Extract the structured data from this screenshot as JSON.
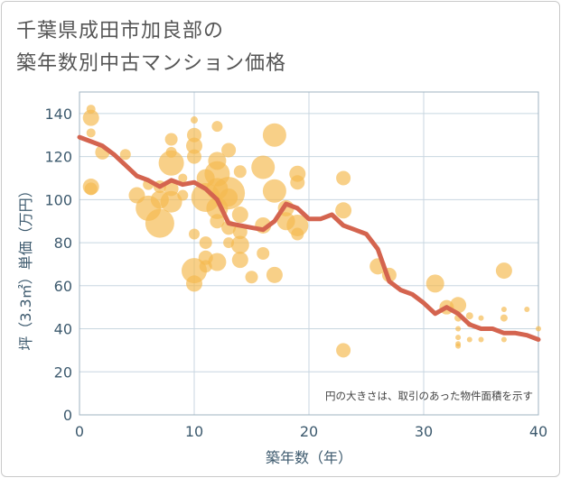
{
  "title_lines": [
    "千葉県成田市加良部の",
    "築年数別中古マンション価格"
  ],
  "chart_data": {
    "type": "scatter",
    "title": "千葉県成田市加良部の築年数別中古マンション価格",
    "xlabel": "築年数（年）",
    "ylabel": "坪（3.3㎡）単価（万円）",
    "xlim": [
      0,
      40
    ],
    "ylim": [
      0,
      150
    ],
    "x_ticks": [
      0,
      10,
      20,
      30,
      40
    ],
    "y_ticks": [
      0,
      20,
      40,
      60,
      80,
      100,
      120,
      140
    ],
    "grid": true,
    "note": "円の大きさは、取引のあった物件面積を示す",
    "colors": {
      "bubble": "#f5b94f",
      "line": "#d4644f",
      "grid": "#c8d6e0"
    },
    "bubbles": [
      {
        "x": 1,
        "y": 142,
        "s": 5
      },
      {
        "x": 1,
        "y": 138,
        "s": 9
      },
      {
        "x": 1,
        "y": 131,
        "s": 5
      },
      {
        "x": 1,
        "y": 106,
        "s": 9
      },
      {
        "x": 1,
        "y": 105,
        "s": 7
      },
      {
        "x": 2,
        "y": 122,
        "s": 8
      },
      {
        "x": 4,
        "y": 121,
        "s": 6
      },
      {
        "x": 5,
        "y": 102,
        "s": 9
      },
      {
        "x": 6,
        "y": 107,
        "s": 6
      },
      {
        "x": 6,
        "y": 96,
        "s": 14
      },
      {
        "x": 7,
        "y": 89,
        "s": 16
      },
      {
        "x": 7,
        "y": 100,
        "s": 10
      },
      {
        "x": 7,
        "y": 106,
        "s": 7
      },
      {
        "x": 8,
        "y": 128,
        "s": 7
      },
      {
        "x": 8,
        "y": 122,
        "s": 6
      },
      {
        "x": 8,
        "y": 117,
        "s": 14
      },
      {
        "x": 8,
        "y": 99,
        "s": 12
      },
      {
        "x": 8,
        "y": 105,
        "s": 8
      },
      {
        "x": 9,
        "y": 102,
        "s": 6
      },
      {
        "x": 9,
        "y": 110,
        "s": 5
      },
      {
        "x": 10,
        "y": 137,
        "s": 4
      },
      {
        "x": 10,
        "y": 130,
        "s": 8
      },
      {
        "x": 10,
        "y": 125,
        "s": 9
      },
      {
        "x": 10,
        "y": 120,
        "s": 8
      },
      {
        "x": 10,
        "y": 84,
        "s": 6
      },
      {
        "x": 10,
        "y": 67,
        "s": 14
      },
      {
        "x": 10,
        "y": 61,
        "s": 9
      },
      {
        "x": 11,
        "y": 101,
        "s": 16
      },
      {
        "x": 11,
        "y": 110,
        "s": 10
      },
      {
        "x": 11,
        "y": 80,
        "s": 7
      },
      {
        "x": 11,
        "y": 73,
        "s": 8
      },
      {
        "x": 11,
        "y": 69,
        "s": 7
      },
      {
        "x": 12,
        "y": 134,
        "s": 6
      },
      {
        "x": 12,
        "y": 118,
        "s": 10
      },
      {
        "x": 12,
        "y": 112,
        "s": 14
      },
      {
        "x": 12,
        "y": 105,
        "s": 12
      },
      {
        "x": 12,
        "y": 96,
        "s": 12
      },
      {
        "x": 12,
        "y": 90,
        "s": 8
      },
      {
        "x": 12,
        "y": 71,
        "s": 10
      },
      {
        "x": 13,
        "y": 123,
        "s": 8
      },
      {
        "x": 13,
        "y": 103,
        "s": 18
      },
      {
        "x": 13,
        "y": 101,
        "s": 10
      },
      {
        "x": 13,
        "y": 87,
        "s": 8
      },
      {
        "x": 13,
        "y": 80,
        "s": 6
      },
      {
        "x": 14,
        "y": 113,
        "s": 7
      },
      {
        "x": 14,
        "y": 93,
        "s": 9
      },
      {
        "x": 14,
        "y": 85,
        "s": 8
      },
      {
        "x": 14,
        "y": 79,
        "s": 10
      },
      {
        "x": 14,
        "y": 72,
        "s": 9
      },
      {
        "x": 15,
        "y": 64,
        "s": 7
      },
      {
        "x": 16,
        "y": 115,
        "s": 13
      },
      {
        "x": 16,
        "y": 88,
        "s": 9
      },
      {
        "x": 16,
        "y": 75,
        "s": 7
      },
      {
        "x": 17,
        "y": 130,
        "s": 13
      },
      {
        "x": 17,
        "y": 104,
        "s": 13
      },
      {
        "x": 17,
        "y": 65,
        "s": 9
      },
      {
        "x": 18,
        "y": 96,
        "s": 9
      },
      {
        "x": 18,
        "y": 90,
        "s": 10
      },
      {
        "x": 19,
        "y": 112,
        "s": 9
      },
      {
        "x": 19,
        "y": 108,
        "s": 8
      },
      {
        "x": 19,
        "y": 88,
        "s": 12
      },
      {
        "x": 19,
        "y": 84,
        "s": 7
      },
      {
        "x": 23,
        "y": 110,
        "s": 8
      },
      {
        "x": 23,
        "y": 95,
        "s": 9
      },
      {
        "x": 23,
        "y": 30,
        "s": 8
      },
      {
        "x": 26,
        "y": 69,
        "s": 9
      },
      {
        "x": 27,
        "y": 65,
        "s": 8
      },
      {
        "x": 31,
        "y": 61,
        "s": 10
      },
      {
        "x": 32,
        "y": 50,
        "s": 8
      },
      {
        "x": 33,
        "y": 51,
        "s": 9
      },
      {
        "x": 33,
        "y": 45,
        "s": 4
      },
      {
        "x": 33,
        "y": 40,
        "s": 3
      },
      {
        "x": 33,
        "y": 36,
        "s": 3
      },
      {
        "x": 33,
        "y": 33,
        "s": 3
      },
      {
        "x": 33,
        "y": 32,
        "s": 3
      },
      {
        "x": 34,
        "y": 46,
        "s": 4
      },
      {
        "x": 34,
        "y": 42,
        "s": 3
      },
      {
        "x": 34,
        "y": 35,
        "s": 3
      },
      {
        "x": 35,
        "y": 45,
        "s": 3
      },
      {
        "x": 35,
        "y": 35,
        "s": 3
      },
      {
        "x": 37,
        "y": 67,
        "s": 9
      },
      {
        "x": 37,
        "y": 49,
        "s": 3
      },
      {
        "x": 37,
        "y": 45,
        "s": 4
      },
      {
        "x": 37,
        "y": 35,
        "s": 3
      },
      {
        "x": 39,
        "y": 49,
        "s": 3
      },
      {
        "x": 40,
        "y": 40,
        "s": 3
      }
    ],
    "line": {
      "x": [
        0,
        1,
        2,
        3,
        4,
        5,
        6,
        7,
        8,
        9,
        10,
        11,
        12,
        13,
        14,
        15,
        16,
        17,
        18,
        19,
        20,
        21,
        22,
        23,
        24,
        25,
        26,
        27,
        28,
        29,
        30,
        31,
        32,
        33,
        34,
        35,
        36,
        37,
        38,
        39,
        40
      ],
      "y": [
        129,
        127,
        125,
        121,
        116,
        111,
        109,
        106,
        109,
        107,
        108,
        105,
        100,
        89,
        88,
        87,
        86,
        90,
        98,
        96,
        91,
        91,
        93,
        88,
        86,
        84,
        77,
        62,
        58,
        56,
        52,
        47,
        50,
        47,
        42,
        40,
        40,
        38,
        38,
        37,
        35
      ]
    }
  }
}
